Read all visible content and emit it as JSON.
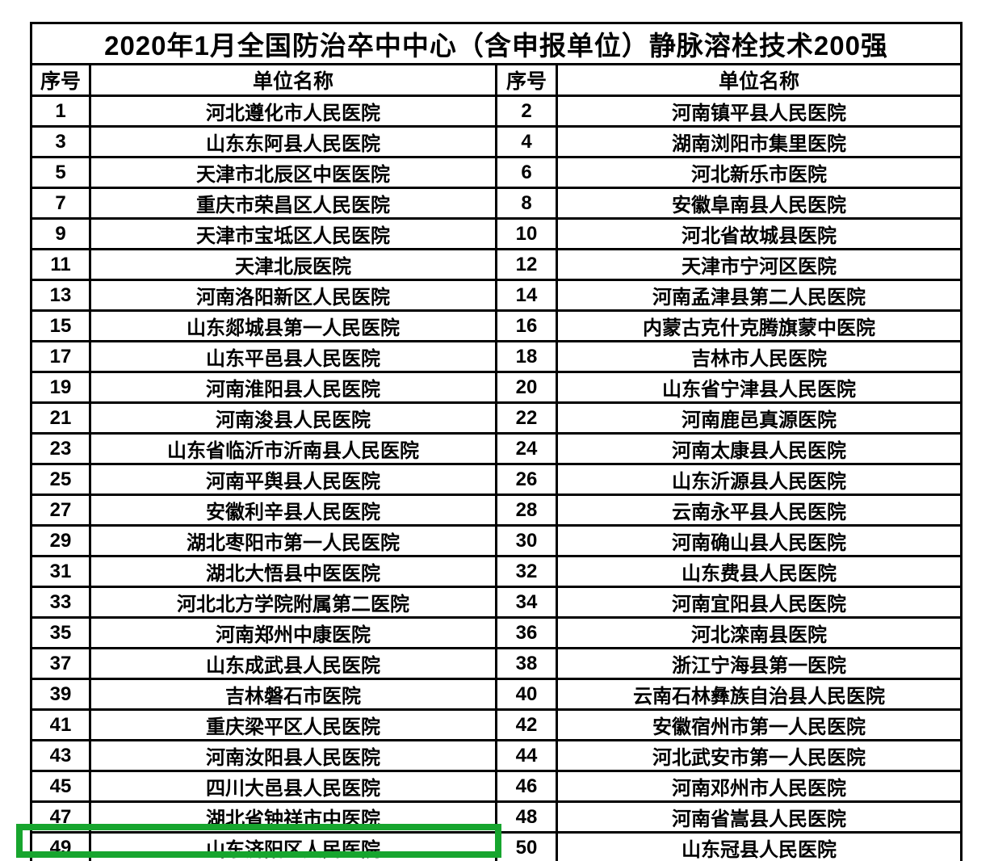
{
  "table": {
    "title": "2020年1月全国防治卒中中心（含申报单位）静脉溶栓技术200强",
    "columns": [
      "序号",
      "单位名称",
      "序号",
      "单位名称"
    ],
    "rows": [
      [
        "1",
        "河北遵化市人民医院",
        "2",
        "河南镇平县人民医院"
      ],
      [
        "3",
        "山东东阿县人民医院",
        "4",
        "湖南浏阳市集里医院"
      ],
      [
        "5",
        "天津市北辰区中医医院",
        "6",
        "河北新乐市医院"
      ],
      [
        "7",
        "重庆市荣昌区人民医院",
        "8",
        "安徽阜南县人民医院"
      ],
      [
        "9",
        "天津市宝坻区人民医院",
        "10",
        "河北省故城县医院"
      ],
      [
        "11",
        "天津北辰医院",
        "12",
        "天津市宁河区医院"
      ],
      [
        "13",
        "河南洛阳新区人民医院",
        "14",
        "河南孟津县第二人民医院"
      ],
      [
        "15",
        "山东郯城县第一人民医院",
        "16",
        "内蒙古克什克腾旗蒙中医院"
      ],
      [
        "17",
        "山东平邑县人民医院",
        "18",
        "吉林市人民医院"
      ],
      [
        "19",
        "河南淮阳县人民医院",
        "20",
        "山东省宁津县人民医院"
      ],
      [
        "21",
        "河南浚县人民医院",
        "22",
        "河南鹿邑真源医院"
      ],
      [
        "23",
        "山东省临沂市沂南县人民医院",
        "24",
        "河南太康县人民医院"
      ],
      [
        "25",
        "河南平舆县人民医院",
        "26",
        "山东沂源县人民医院"
      ],
      [
        "27",
        "安徽利辛县人民医院",
        "28",
        "云南永平县人民医院"
      ],
      [
        "29",
        "湖北枣阳市第一人民医院",
        "30",
        "河南确山县人民医院"
      ],
      [
        "31",
        "湖北大悟县中医医院",
        "32",
        "山东费县人民医院"
      ],
      [
        "33",
        "河北北方学院附属第二医院",
        "34",
        "河南宜阳县人民医院"
      ],
      [
        "35",
        "河南郑州中康医院",
        "36",
        "河北滦南县医院"
      ],
      [
        "37",
        "山东成武县人民医院",
        "38",
        "浙江宁海县第一医院"
      ],
      [
        "39",
        "吉林磐石市医院",
        "40",
        "云南石林彝族自治县人民医院"
      ],
      [
        "41",
        "重庆梁平区人民医院",
        "42",
        "安徽宿州市第一人民医院"
      ],
      [
        "43",
        "河南汝阳县人民医院",
        "44",
        "河北武安市第一人民医院"
      ],
      [
        "45",
        "四川大邑县人民医院",
        "46",
        "河南邓州市人民医院"
      ],
      [
        "47",
        "湖北省钟祥市中医院",
        "48",
        "河南省嵩县人民医院"
      ],
      [
        "49",
        "山东济阳区人民医院",
        "50",
        "山东冠县人民医院"
      ]
    ],
    "highlight": {
      "rank": "49",
      "unit": "山东济阳区人民医院",
      "color": "#17a52e"
    }
  }
}
